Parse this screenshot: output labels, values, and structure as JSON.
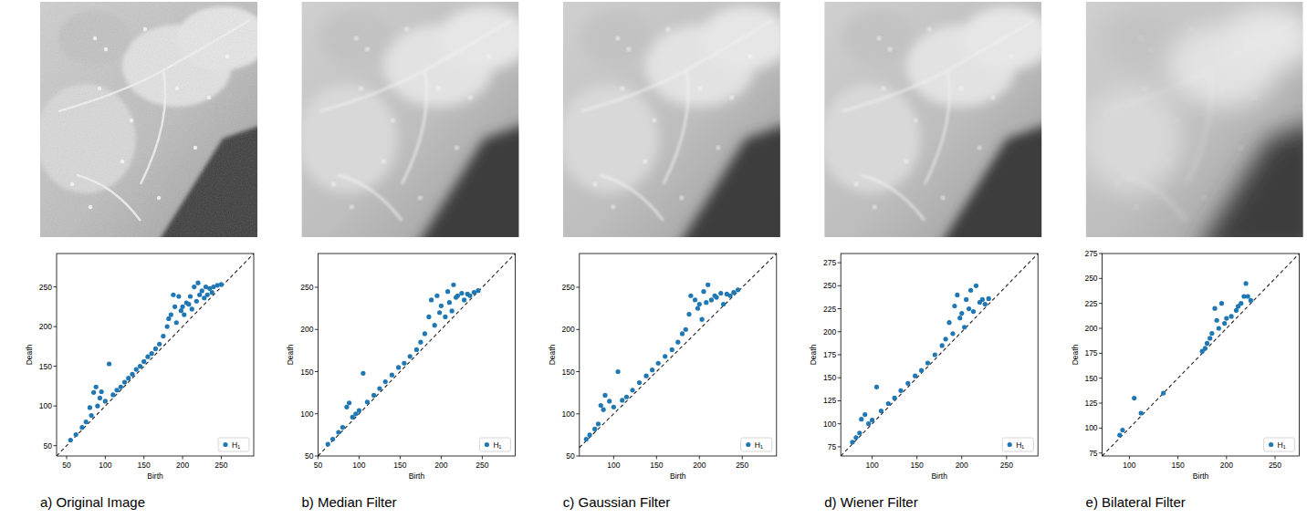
{
  "chart_data": [
    {
      "type": "scatter",
      "title": "a) Original Image",
      "x_label": "Birth",
      "y_label": "Death",
      "xlim": [
        37,
        292
      ],
      "ylim": [
        37,
        292
      ],
      "xticks": [
        50,
        100,
        150,
        200,
        250
      ],
      "yticks": [
        50,
        100,
        150,
        200,
        250
      ],
      "legend": "lower right",
      "series": [
        {
          "name": "H₁",
          "color": "#1f77b4",
          "marker": "circle",
          "x": [
            55,
            62,
            70,
            75,
            80,
            82,
            85,
            88,
            90,
            93,
            95,
            100,
            105,
            110,
            115,
            120,
            125,
            130,
            135,
            140,
            145,
            150,
            155,
            160,
            165,
            170,
            175,
            180,
            182,
            185,
            188,
            190,
            192,
            195,
            198,
            200,
            202,
            205,
            208,
            210,
            212,
            215,
            218,
            220,
            222,
            225,
            228,
            230,
            232,
            235,
            238,
            240,
            245,
            250
          ],
          "values": [
            57,
            64,
            73,
            80,
            98,
            88,
            117,
            124,
            100,
            110,
            118,
            106,
            153,
            114,
            120,
            124,
            130,
            135,
            140,
            146,
            150,
            156,
            162,
            166,
            172,
            178,
            188,
            200,
            210,
            215,
            240,
            225,
            205,
            238,
            220,
            225,
            215,
            230,
            228,
            238,
            222,
            250,
            232,
            255,
            240,
            245,
            236,
            250,
            240,
            248,
            243,
            250,
            252,
            253
          ]
        }
      ]
    },
    {
      "type": "scatter",
      "title": "b) Median Filter",
      "x_label": "Birth",
      "y_label": "Death",
      "xlim": [
        50,
        290
      ],
      "ylim": [
        50,
        290
      ],
      "xticks": [
        50,
        100,
        150,
        200,
        250
      ],
      "yticks": [
        50,
        100,
        150,
        200,
        250
      ],
      "legend": "lower right",
      "series": [
        {
          "name": "H₁",
          "color": "#1f77b4",
          "marker": "circle",
          "x": [
            62,
            68,
            75,
            80,
            85,
            88,
            92,
            96,
            100,
            105,
            110,
            118,
            125,
            132,
            140,
            148,
            155,
            162,
            170,
            175,
            180,
            185,
            188,
            192,
            195,
            198,
            200,
            205,
            208,
            210,
            213,
            215,
            218,
            220,
            225,
            228,
            232,
            235,
            240,
            245
          ],
          "values": [
            64,
            70,
            78,
            84,
            108,
            113,
            96,
            100,
            104,
            148,
            114,
            122,
            130,
            138,
            146,
            155,
            160,
            168,
            176,
            185,
            195,
            215,
            235,
            205,
            240,
            220,
            228,
            215,
            245,
            232,
            222,
            253,
            238,
            240,
            243,
            235,
            242,
            240,
            244,
            246
          ]
        }
      ]
    },
    {
      "type": "scatter",
      "title": "c) Gaussian Filter",
      "x_label": "Birth",
      "y_label": "Death",
      "xlim": [
        60,
        290
      ],
      "ylim": [
        50,
        290
      ],
      "xticks": [
        100,
        150,
        200,
        250
      ],
      "yticks": [
        50,
        100,
        150,
        200,
        250
      ],
      "legend": "lower right",
      "series": [
        {
          "name": "H₁",
          "color": "#1f77b4",
          "marker": "circle",
          "x": [
            68,
            72,
            78,
            82,
            85,
            88,
            90,
            95,
            100,
            105,
            110,
            115,
            122,
            130,
            138,
            145,
            152,
            160,
            168,
            175,
            180,
            184,
            188,
            190,
            195,
            198,
            200,
            203,
            205,
            208,
            210,
            214,
            218,
            220,
            225,
            228,
            232,
            236,
            240,
            245
          ],
          "values": [
            70,
            75,
            82,
            88,
            110,
            105,
            122,
            115,
            108,
            150,
            116,
            120,
            128,
            137,
            145,
            152,
            160,
            168,
            176,
            185,
            195,
            200,
            218,
            240,
            235,
            225,
            230,
            212,
            245,
            232,
            253,
            235,
            240,
            238,
            243,
            230,
            242,
            240,
            244,
            247
          ]
        }
      ]
    },
    {
      "type": "scatter",
      "title": "d) Wiener Filter",
      "x_label": "Birth",
      "y_label": "Death",
      "xlim": [
        65,
        285
      ],
      "ylim": [
        65,
        285
      ],
      "xticks": [
        100,
        150,
        200,
        250
      ],
      "yticks": [
        75,
        100,
        125,
        150,
        175,
        200,
        225,
        250,
        275
      ],
      "legend": "lower right",
      "series": [
        {
          "name": "H₁",
          "color": "#1f77b4",
          "marker": "circle",
          "x": [
            78,
            82,
            86,
            88,
            92,
            96,
            100,
            105,
            110,
            118,
            125,
            132,
            140,
            148,
            155,
            162,
            170,
            178,
            182,
            186,
            190,
            192,
            195,
            198,
            200,
            203,
            205,
            208,
            210,
            213,
            216,
            220,
            223,
            226,
            230
          ],
          "values": [
            80,
            85,
            90,
            105,
            110,
            100,
            104,
            140,
            114,
            122,
            128,
            136,
            144,
            152,
            158,
            166,
            175,
            185,
            192,
            210,
            198,
            228,
            240,
            215,
            220,
            205,
            235,
            225,
            245,
            222,
            250,
            232,
            235,
            230,
            236
          ]
        }
      ]
    },
    {
      "type": "scatter",
      "title": "e) Bilateral Filter",
      "x_label": "Birth",
      "y_label": "Death",
      "xlim": [
        72,
        275
      ],
      "ylim": [
        72,
        275
      ],
      "xticks": [
        100,
        150,
        200,
        250
      ],
      "yticks": [
        75,
        100,
        125,
        150,
        175,
        200,
        225,
        250,
        275
      ],
      "legend": "lower right",
      "series": [
        {
          "name": "H₁",
          "color": "#1f77b4",
          "marker": "circle",
          "x": [
            90,
            93,
            105,
            112,
            135,
            175,
            178,
            180,
            183,
            185,
            188,
            190,
            192,
            195,
            198,
            200,
            205,
            210,
            212,
            215,
            218,
            220,
            222,
            225
          ],
          "values": [
            93,
            98,
            130,
            115,
            135,
            177,
            180,
            185,
            190,
            195,
            220,
            208,
            200,
            225,
            205,
            210,
            212,
            218,
            222,
            225,
            232,
            245,
            232,
            228
          ]
        }
      ]
    }
  ]
}
